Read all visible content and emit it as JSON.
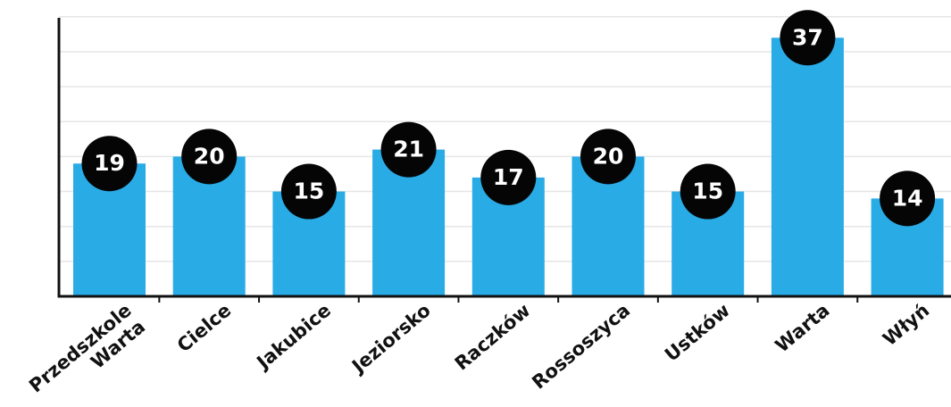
{
  "chart_data": {
    "type": "bar",
    "categories": [
      [
        "Przedszkole",
        "Warta"
      ],
      [
        "Cielce"
      ],
      [
        "Jakubice"
      ],
      [
        "Jeziorsko"
      ],
      [
        "Raczków"
      ],
      [
        "Rossoszyca"
      ],
      [
        "Ustków"
      ],
      [
        "Warta"
      ],
      [
        "Włyń"
      ]
    ],
    "values": [
      19,
      20,
      15,
      21,
      17,
      20,
      15,
      37,
      14
    ],
    "ylim": [
      0,
      40
    ],
    "grid": true,
    "legend": "none",
    "colors": {
      "bar": "#29abe6",
      "badge": "#050505",
      "badge_text": "#ffffff",
      "axis": "#111111",
      "grid": "#e6e6e6"
    }
  }
}
